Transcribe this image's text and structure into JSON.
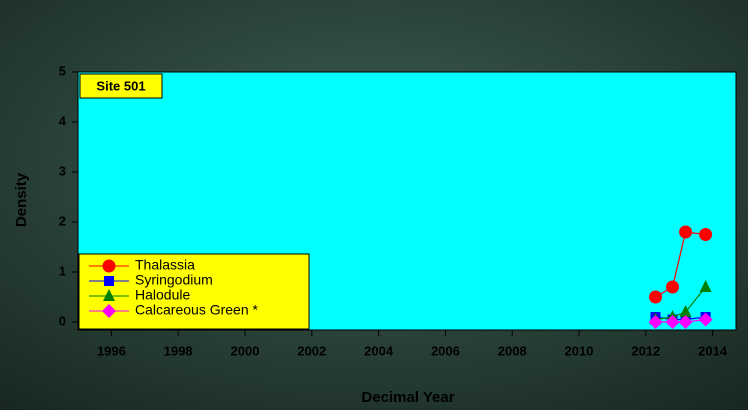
{
  "chart_data": {
    "type": "line",
    "annotation": "Site 501",
    "xlabel": "Decimal Year",
    "ylabel": "Density",
    "xlim": [
      1995,
      2014.7
    ],
    "ylim": [
      -0.16,
      5
    ],
    "xticks": [
      1996,
      1998,
      2000,
      2002,
      2004,
      2006,
      2008,
      2010,
      2012,
      2014
    ],
    "yticks": [
      0,
      1,
      2,
      3,
      4,
      5
    ],
    "x": [
      2012.29,
      2012.8,
      2013.19,
      2013.79
    ],
    "plot_color": "#00ffff",
    "legend": "lower left",
    "series": [
      {
        "name": "Thalassia",
        "color": "#ff0000",
        "marker": "circle",
        "values": [
          0.5,
          0.7,
          1.8,
          1.75
        ]
      },
      {
        "name": "Syringodium",
        "color": "#0000ff",
        "marker": "square",
        "values": [
          0.1,
          0.05,
          0.05,
          0.1
        ]
      },
      {
        "name": "Halodule",
        "color": "#008000",
        "marker": "triangle",
        "values": [
          0.05,
          0.1,
          0.2,
          0.7
        ]
      },
      {
        "name": "Calcareous Green *",
        "color": "#ff00ff",
        "marker": "diamond",
        "values": [
          0,
          0,
          0,
          0.05
        ]
      }
    ]
  }
}
